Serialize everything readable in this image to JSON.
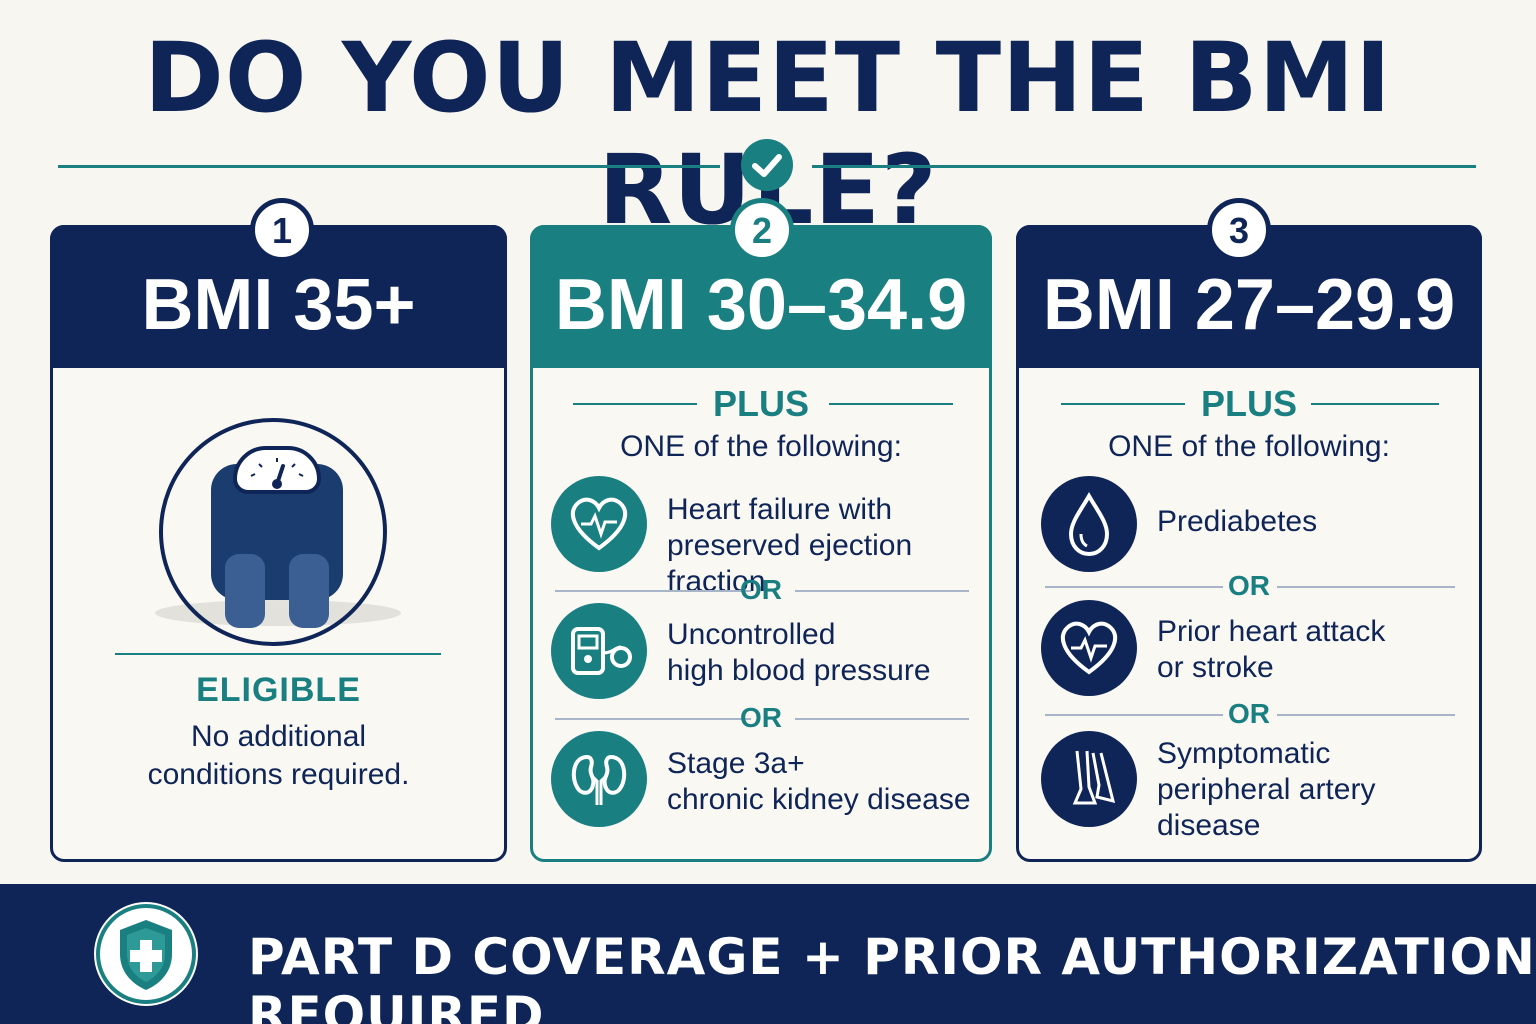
{
  "title": "DO YOU MEET THE BMI RULE?",
  "colors": {
    "navy": "#0f2557",
    "teal": "#1a7f80",
    "background": "#f8f6f0"
  },
  "cards": [
    {
      "number": "1",
      "heading": "BMI 35+",
      "icon": "bathroom-scale-icon",
      "status": "ELIGIBLE",
      "note": "No additional\nconditions required."
    },
    {
      "number": "2",
      "heading": "BMI 30–34.9",
      "plus": "PLUS",
      "subheading": "ONE of the following:",
      "conditions": [
        {
          "icon": "heart-pulse-icon",
          "text": "Heart failure with\npreserved ejection fraction"
        },
        {
          "icon": "blood-pressure-monitor-icon",
          "text": "Uncontrolled\nhigh blood pressure"
        },
        {
          "icon": "kidney-icon",
          "text": "Stage 3a+\nchronic kidney disease"
        }
      ],
      "or_label": "OR"
    },
    {
      "number": "3",
      "heading": "BMI 27–29.9",
      "plus": "PLUS",
      "subheading": "ONE of the following:",
      "conditions": [
        {
          "icon": "blood-drop-icon",
          "text": "Prediabetes"
        },
        {
          "icon": "heart-pulse-icon",
          "text": "Prior heart attack\nor stroke"
        },
        {
          "icon": "legs-icon",
          "text": "Symptomatic\nperipheral artery\ndisease"
        }
      ],
      "or_label": "OR"
    }
  ],
  "banner": {
    "icon": "shield-plus-icon",
    "text": "PART D COVERAGE + PRIOR AUTHORIZATION REQUIRED"
  }
}
